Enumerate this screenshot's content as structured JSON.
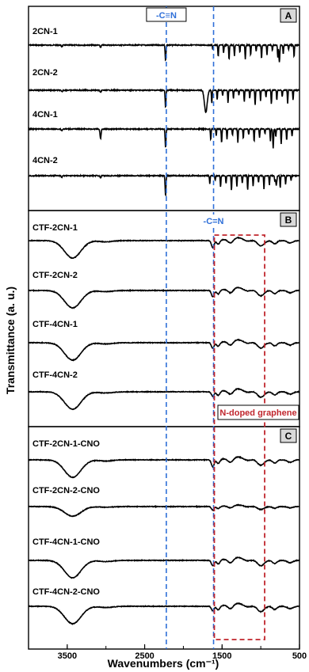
{
  "chart_data": {
    "type": "line",
    "xlabel": "Wavenumbers (cm⁻¹)",
    "ylabel": "Transmittance (a. u.)",
    "xlim": [
      4000,
      500
    ],
    "x_ticks": [
      "3500",
      "2500",
      "1500",
      "500"
    ],
    "x_tick_values": [
      3500,
      2500,
      1500,
      500
    ],
    "reference_lines": [
      {
        "wavenumber": 2220,
        "label": "-C≡N",
        "color": "#2e6fd8"
      },
      {
        "wavenumber": 1610,
        "label": "-C=N",
        "color": "#2e6fd8"
      }
    ],
    "highlight": {
      "from": 1600,
      "to": 950,
      "label": "N-doped graphene",
      "color": "#c0262d"
    },
    "panels": [
      {
        "letter": "A",
        "series": [
          {
            "name": "2CN-1",
            "kind": "monomer"
          },
          {
            "name": "2CN-2",
            "kind": "monomer"
          },
          {
            "name": "4CN-1",
            "kind": "monomer"
          },
          {
            "name": "4CN-2",
            "kind": "monomer"
          }
        ]
      },
      {
        "letter": "B",
        "series": [
          {
            "name": "CTF-2CN-1",
            "kind": "ctf"
          },
          {
            "name": "CTF-2CN-2",
            "kind": "ctf"
          },
          {
            "name": "CTF-4CN-1",
            "kind": "ctf"
          },
          {
            "name": "CTF-4CN-2",
            "kind": "ctf"
          }
        ]
      },
      {
        "letter": "C",
        "series": [
          {
            "name": "CTF-2CN-1-CNO",
            "kind": "ctf"
          },
          {
            "name": "CTF-2CN-2-CNO",
            "kind": "ctf"
          },
          {
            "name": "CTF-4CN-1-CNO",
            "kind": "ctf"
          },
          {
            "name": "CTF-4CN-2-CNO",
            "kind": "ctf"
          }
        ]
      }
    ]
  }
}
